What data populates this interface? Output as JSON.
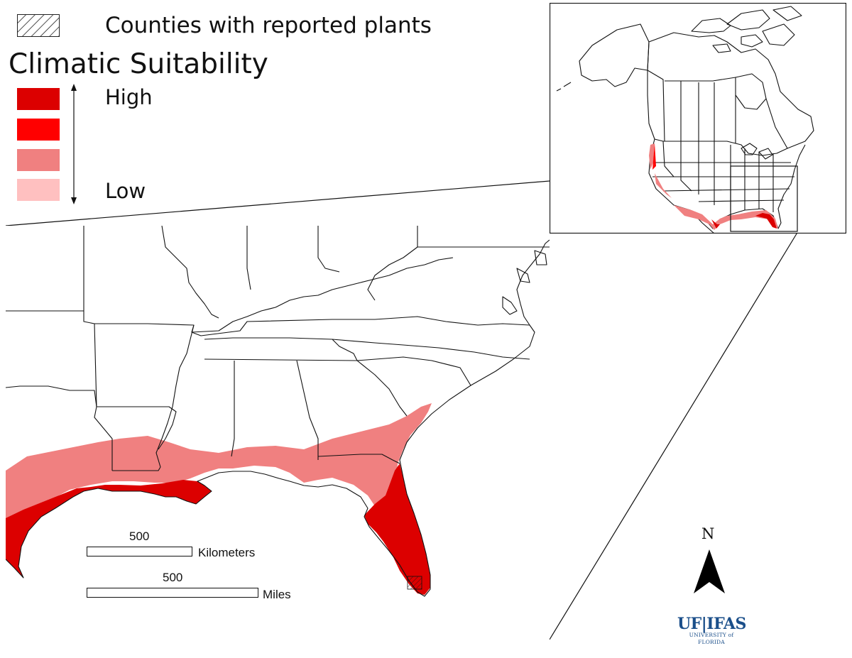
{
  "legend": {
    "hatch_label": "Counties with reported plants",
    "title": "Climatic Suitability",
    "high_label": "High",
    "low_label": "Low",
    "classes": [
      {
        "level": 4,
        "color": "#dc0000"
      },
      {
        "level": 3,
        "color": "#ff0000"
      },
      {
        "level": 2,
        "color": "#f08080"
      },
      {
        "level": 1,
        "color": "#ffc0c0"
      }
    ]
  },
  "scale_bars": {
    "kilometers": {
      "value": "500",
      "unit": "Kilometers"
    },
    "miles": {
      "value": "500",
      "unit": "Miles"
    }
  },
  "north_arrow": {
    "label": "N"
  },
  "logo": {
    "main": "UF|IFAS",
    "sub": "UNIVERSITY of FLORIDA",
    "color": "#1b4f8a"
  },
  "map": {
    "region": "Southeastern United States",
    "inset_region": "North America"
  }
}
